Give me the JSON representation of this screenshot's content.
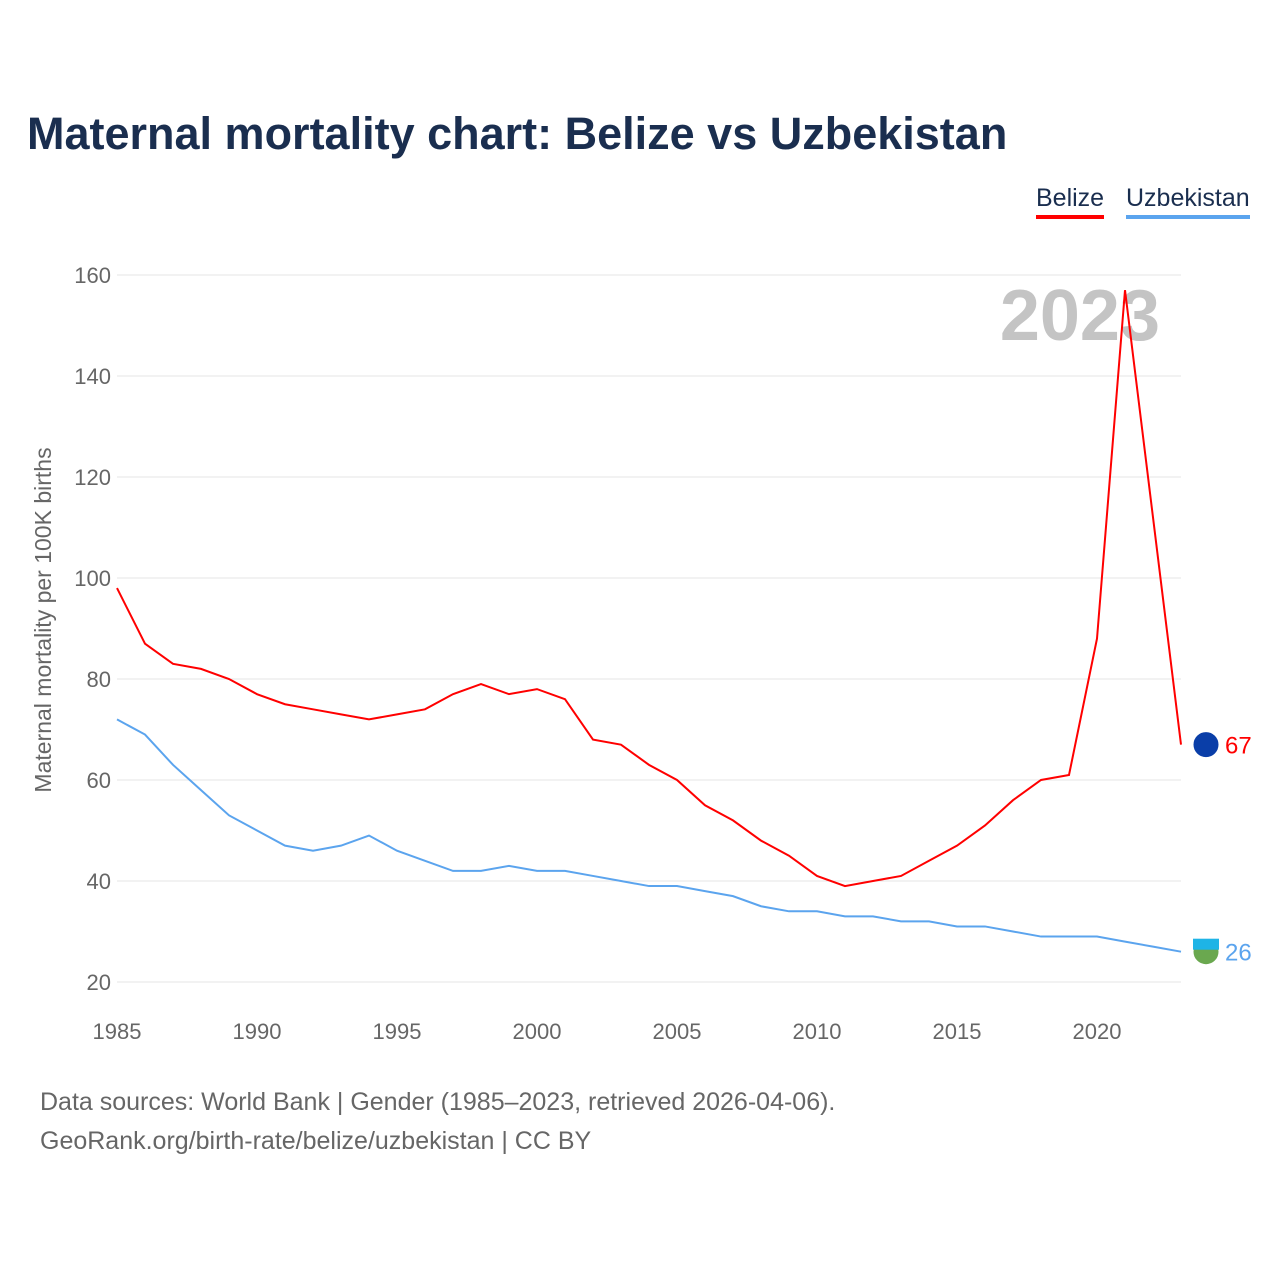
{
  "chart_data": {
    "type": "line",
    "title": "Maternal mortality chart: Belize vs Uzbekistan",
    "xlabel": "",
    "ylabel": "Maternal mortality per 100K births",
    "xlim": [
      1985,
      2023
    ],
    "ylim": [
      20,
      160
    ],
    "yticks": [
      20,
      40,
      60,
      80,
      100,
      120,
      140,
      160
    ],
    "xticks": [
      1985,
      1990,
      1995,
      2000,
      2005,
      2010,
      2015,
      2020
    ],
    "year_label": "2023",
    "legend_position": "top-right",
    "grid": true,
    "x": [
      1985,
      1986,
      1987,
      1988,
      1989,
      1990,
      1991,
      1992,
      1993,
      1994,
      1995,
      1996,
      1997,
      1998,
      1999,
      2000,
      2001,
      2002,
      2003,
      2004,
      2005,
      2006,
      2007,
      2008,
      2009,
      2010,
      2011,
      2012,
      2013,
      2014,
      2015,
      2016,
      2017,
      2018,
      2019,
      2020,
      2021,
      2022,
      2023
    ],
    "series": [
      {
        "name": "Belize",
        "color": "#ff0000",
        "end_label": "67",
        "values": [
          98,
          87,
          83,
          82,
          80,
          77,
          75,
          74,
          73,
          72,
          73,
          74,
          77,
          79,
          77,
          78,
          76,
          68,
          67,
          63,
          60,
          55,
          52,
          48,
          45,
          41,
          39,
          40,
          41,
          44,
          47,
          51,
          56,
          60,
          61,
          88,
          157,
          112,
          67
        ]
      },
      {
        "name": "Uzbekistan",
        "color": "#5ba4ee",
        "end_label": "26",
        "values": [
          72,
          69,
          63,
          58,
          53,
          50,
          47,
          46,
          47,
          49,
          46,
          44,
          42,
          42,
          43,
          42,
          42,
          41,
          40,
          39,
          39,
          38,
          37,
          35,
          34,
          34,
          33,
          33,
          32,
          32,
          31,
          31,
          30,
          29,
          29,
          29,
          28,
          27,
          26
        ]
      }
    ]
  },
  "sources": {
    "line1": "Data sources: World Bank | Gender (1985–2023, retrieved 2026-04-06).",
    "line2": "GeoRank.org/birth-rate/belize/uzbekistan | CC BY"
  }
}
